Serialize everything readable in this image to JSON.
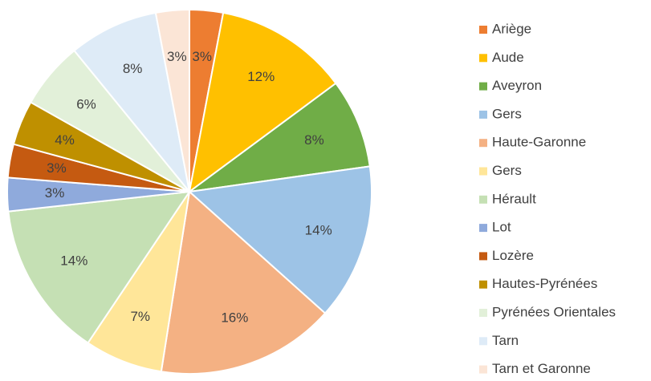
{
  "chart_data": {
    "type": "pie",
    "categories": [
      "Ariège",
      "Aude",
      "Aveyron",
      "Gers",
      "Haute-Garonne",
      "Gers",
      "Hérault",
      "Lot",
      "Lozère",
      "Hautes-Pyrénées",
      "Pyrénées Orientales",
      "Tarn",
      "Tarn et Garonne"
    ],
    "values": [
      3,
      12,
      8,
      14,
      16,
      7,
      14,
      3,
      3,
      4,
      6,
      8,
      3
    ],
    "value_labels": [
      "3%",
      "12%",
      "8%",
      "14%",
      "16%",
      "7%",
      "14%",
      "3%",
      "3%",
      "4%",
      "6%",
      "8%",
      "3%"
    ],
    "colors": [
      "#ed7d31",
      "#ffc000",
      "#70ad47",
      "#9dc3e6",
      "#f4b183",
      "#ffe699",
      "#c5e0b4",
      "#8faadc",
      "#c55a11",
      "#bf9000",
      "#e2f0d9",
      "#deebf7",
      "#fbe5d6"
    ],
    "legend": "right"
  }
}
